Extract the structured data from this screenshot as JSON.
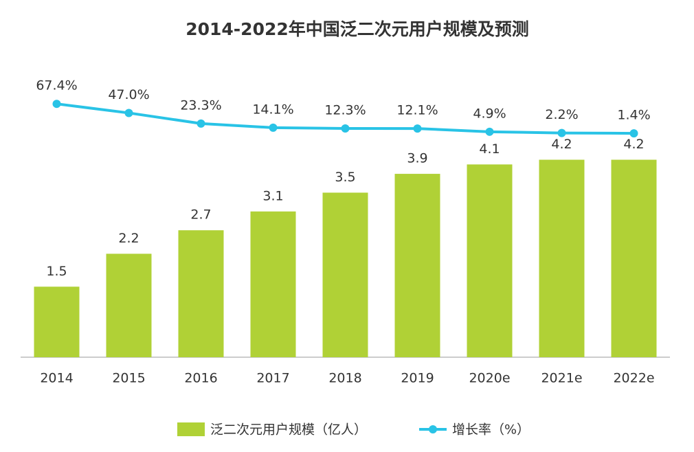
{
  "chart_data": {
    "type": "bar",
    "title": "2014-2022年中国泛二次元用户规模及预测",
    "categories": [
      "2014",
      "2015",
      "2016",
      "2017",
      "2018",
      "2019",
      "2020e",
      "2021e",
      "2022e"
    ],
    "series": [
      {
        "name": "泛二次元用户规模（亿人）",
        "type": "bar",
        "color": "#b0d136",
        "values": [
          1.5,
          2.2,
          2.7,
          3.1,
          3.5,
          3.9,
          4.1,
          4.2,
          4.2
        ]
      },
      {
        "name": "增长率（%）",
        "type": "line",
        "axis": "y2",
        "color": "#29c3e6",
        "values": [
          67.4,
          47.0,
          23.3,
          14.1,
          12.3,
          12.1,
          4.9,
          2.2,
          1.4
        ],
        "value_labels": [
          "67.4%",
          "47.0%",
          "23.3%",
          "14.1%",
          "12.3%",
          "12.1%",
          "4.9%",
          "2.2%",
          "1.4%"
        ]
      }
    ],
    "ylim": [
      0,
      4.5
    ],
    "y2lim": [
      0,
      100
    ],
    "legend": "bottom"
  }
}
